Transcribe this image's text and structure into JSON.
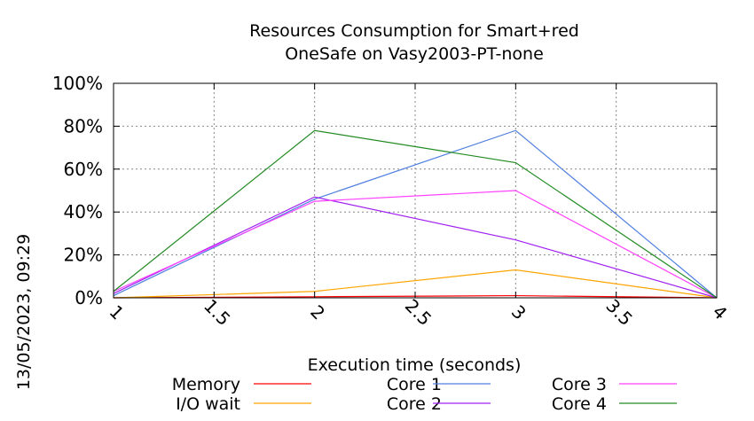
{
  "chart_data": {
    "type": "line",
    "title": [
      "Resources Consumption for Smart+red",
      "OneSafe on Vasy2003-PT-none"
    ],
    "xlabel": "Execution time (seconds)",
    "ylabel": "",
    "side_label": "13/05/2023, 09:29",
    "x": [
      1,
      2,
      3,
      4
    ],
    "xlim": [
      1,
      4
    ],
    "ylim": [
      0,
      100
    ],
    "x_ticks": [
      1,
      1.5,
      2,
      2.5,
      3,
      3.5,
      4
    ],
    "x_tick_labels": [
      "1",
      "1.5",
      "2",
      "2.5",
      "3",
      "3.5",
      "4"
    ],
    "y_ticks": [
      0,
      20,
      40,
      60,
      80,
      100
    ],
    "y_tick_labels": [
      "0%",
      "20%",
      "40%",
      "60%",
      "80%",
      "100%"
    ],
    "grid": true,
    "legend_position": "bottom",
    "series": [
      {
        "name": "Memory",
        "color": "#ff0000",
        "values": [
          0,
          0.5,
          1,
          0
        ]
      },
      {
        "name": "I/O wait",
        "color": "#ffa500",
        "values": [
          0,
          3,
          13,
          0
        ]
      },
      {
        "name": "Core 1",
        "color": "#4f7fdf",
        "values": [
          1,
          46,
          78,
          0
        ]
      },
      {
        "name": "Core 2",
        "color": "#a020f0",
        "values": [
          2,
          47,
          27,
          0
        ]
      },
      {
        "name": "Core 3",
        "color": "#ff40ff",
        "values": [
          3,
          45,
          50,
          0
        ]
      },
      {
        "name": "Core 4",
        "color": "#228b22",
        "values": [
          3,
          78,
          63,
          0
        ]
      }
    ]
  }
}
